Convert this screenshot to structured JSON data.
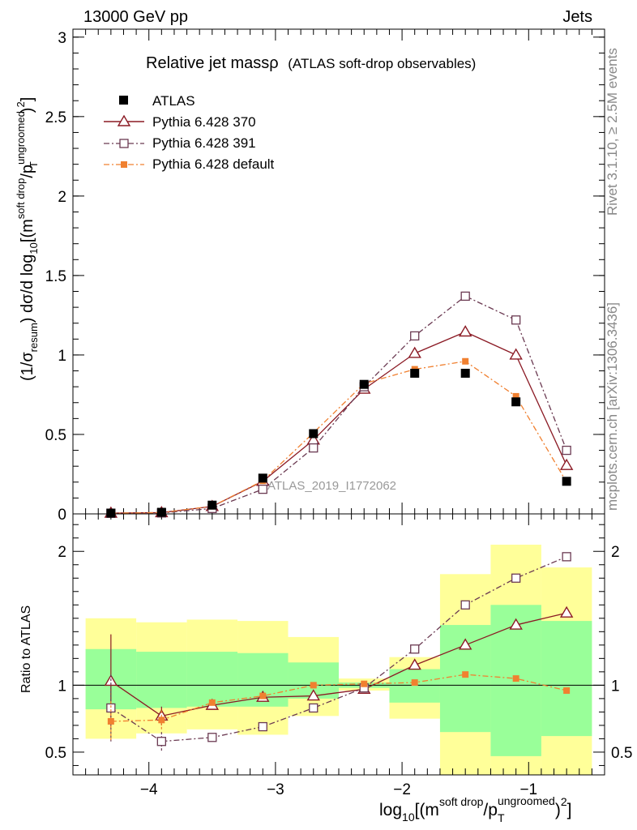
{
  "header": {
    "left": "13000 GeV pp",
    "right": "Jets"
  },
  "side_labels": {
    "rivet": "Rivet 3.1.10, ≥ 2.5M events",
    "mcplots": "mcplots.cern.ch [arXiv:1306.3436]"
  },
  "main_title": {
    "text": "Relative jet massρ",
    "sub": "(ATLAS soft-drop observables)"
  },
  "watermark": "ATLAS_2019_I1772062",
  "ylabel_main": {
    "prefix": "(1/σ",
    "sub1": "resum",
    "mid": ") dσ/d log",
    "sub2": "10",
    "rest": "[(m",
    "sup1": "soft drop",
    "slash": "/p",
    "sup2": "ungroomed",
    "sub3": "T",
    "end": ")",
    "sup3": "2",
    "close": "]"
  },
  "ylabel_ratio": "Ratio to ATLAS",
  "xlabel": {
    "pre": "log",
    "sub1": "10",
    "mid": "[(m",
    "sup1": "soft drop",
    "slash": "/p",
    "sup2": "ungroomed",
    "sub2": "T",
    "end": ")",
    "sup3": "2",
    "close": "]"
  },
  "legend": [
    {
      "name": "ATLAS"
    },
    {
      "name": "Pythia 6.428 370"
    },
    {
      "name": "Pythia 6.428 391"
    },
    {
      "name": "Pythia 6.428 default"
    }
  ],
  "colors": {
    "data": "#000000",
    "p370": "#8b1a24",
    "p391": "#6b3a52",
    "pdef": "#f08030",
    "band_yellow": "#ffff99",
    "band_green": "#99ff99"
  },
  "chart_data": [
    {
      "type": "scatter",
      "title": "Relative jet massρ (ATLAS soft-drop observables)",
      "xlabel": "log10[(m^soft drop/p_T^ungroomed)^2]",
      "ylabel": "(1/σ_resum) dσ/d log10[(m^soft drop/p_T^ungroomed)^2]",
      "xlim": [
        -4.6,
        -0.4
      ],
      "ylim": [
        0,
        3.05
      ],
      "yticks": [
        "0",
        "0.5",
        "1",
        "1.5",
        "2",
        "2.5",
        "3"
      ],
      "xticks": [
        "−4",
        "−3",
        "−2",
        "−1"
      ],
      "x": [
        -4.3,
        -3.9,
        -3.5,
        -3.1,
        -2.7,
        -2.3,
        -1.9,
        -1.5,
        -1.1,
        -0.7
      ],
      "series": [
        {
          "name": "ATLAS",
          "values": [
            0.005,
            0.01,
            0.055,
            0.225,
            0.505,
            0.815,
            0.885,
            0.885,
            0.705,
            0.205
          ]
        },
        {
          "name": "Pythia 6.428 370",
          "values": [
            0.005,
            0.008,
            0.047,
            0.205,
            0.465,
            0.785,
            1.01,
            1.145,
            1.0,
            0.305
          ]
        },
        {
          "name": "Pythia 6.428 391",
          "values": [
            0.004,
            0.006,
            0.034,
            0.155,
            0.415,
            0.8,
            1.12,
            1.37,
            1.22,
            0.4
          ]
        },
        {
          "name": "Pythia 6.428 default",
          "values": [
            0.004,
            0.008,
            0.048,
            0.208,
            0.51,
            0.82,
            0.91,
            0.96,
            0.74,
            0.2
          ]
        }
      ]
    },
    {
      "type": "line",
      "title": "Ratio to ATLAS",
      "ylabel": "Ratio to ATLAS",
      "xlim": [
        -4.6,
        -0.4
      ],
      "ylim": [
        0.33,
        2.28
      ],
      "yticks": [
        "0.5",
        "1",
        "2"
      ],
      "x": [
        -4.3,
        -3.9,
        -3.5,
        -3.1,
        -2.7,
        -2.3,
        -1.9,
        -1.5,
        -1.1,
        -0.7
      ],
      "bin_edges": [
        -4.5,
        -4.1,
        -3.7,
        -3.3,
        -2.9,
        -2.5,
        -2.1,
        -1.7,
        -1.3,
        -0.9,
        -0.5
      ],
      "band_yellow": [
        [
          0.6,
          1.5
        ],
        [
          0.64,
          1.47
        ],
        [
          0.67,
          1.49
        ],
        [
          0.63,
          1.48
        ],
        [
          0.77,
          1.36
        ],
        [
          0.96,
          1.05
        ],
        [
          0.75,
          1.21
        ],
        [
          0.33,
          1.83
        ],
        [
          0.33,
          2.05
        ],
        [
          0.33,
          1.88
        ]
      ],
      "band_green": [
        [
          0.82,
          1.27
        ],
        [
          0.83,
          1.25
        ],
        [
          0.84,
          1.25
        ],
        [
          0.84,
          1.24
        ],
        [
          0.9,
          1.17
        ],
        [
          0.98,
          1.02
        ],
        [
          0.87,
          1.12
        ],
        [
          0.65,
          1.45
        ],
        [
          0.47,
          1.6
        ],
        [
          0.62,
          1.48
        ]
      ],
      "series": [
        {
          "name": "Pythia 6.428 370",
          "values": [
            1.03,
            0.77,
            0.85,
            0.91,
            0.92,
            0.97,
            1.15,
            1.3,
            1.45,
            1.54
          ],
          "err": [
            0.35,
            0.07,
            0.02,
            0.01,
            0.0,
            0.0,
            0.0,
            0.0,
            0.0,
            0.0
          ]
        },
        {
          "name": "Pythia 6.428 391",
          "values": [
            0.83,
            0.58,
            0.61,
            0.69,
            0.83,
            0.98,
            1.27,
            1.6,
            1.8,
            1.96
          ],
          "err": [
            0.25,
            0.07,
            0.02,
            0.01,
            0.0,
            0.0,
            0.0,
            0.0,
            0.0,
            0.0
          ]
        },
        {
          "name": "Pythia 6.428 default",
          "values": [
            0.73,
            0.74,
            0.87,
            0.92,
            1.0,
            1.01,
            1.02,
            1.08,
            1.05,
            0.96
          ],
          "err": [
            0.15,
            0.07,
            0.02,
            0.01,
            0.0,
            0.0,
            0.0,
            0.0,
            0.0,
            0.0
          ]
        }
      ]
    }
  ]
}
